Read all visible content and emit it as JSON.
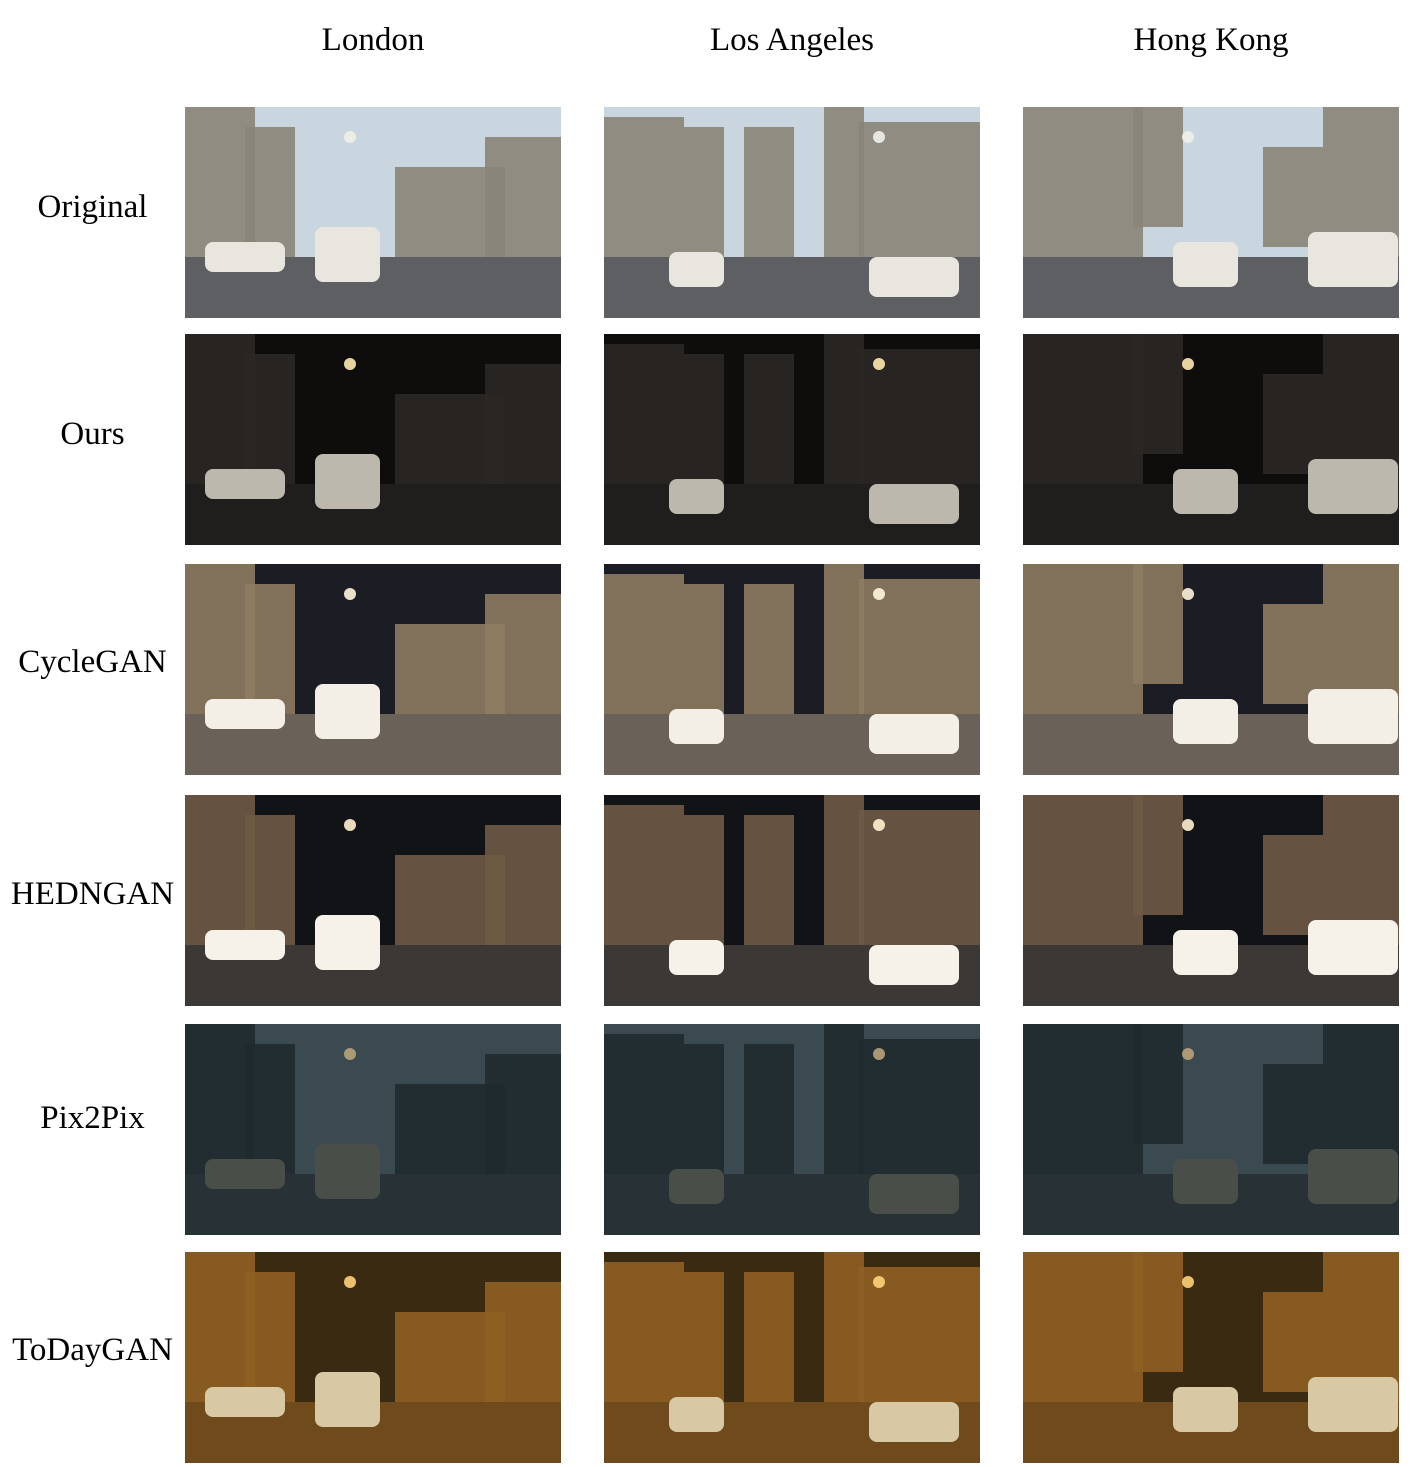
{
  "columns": [
    "London",
    "Los Angeles",
    "Hong Kong"
  ],
  "rows": [
    "Original",
    "Ours",
    "CycleGAN",
    "HEDNGAN",
    "Pix2Pix",
    "ToDayGAN"
  ],
  "palettes": {
    "Original": {
      "sky": "#c9d6e0",
      "building": "#8a8478",
      "road": "#5d5f63",
      "car": "#e8e6df",
      "light": "#f0f0ea"
    },
    "Ours": {
      "sky": "#0e0d0c",
      "building": "#2a2723",
      "road": "#1f1e1d",
      "car": "#bdb8ad",
      "light": "#ffe9b0"
    },
    "CycleGAN": {
      "sky": "#1b1c24",
      "building": "#8d7b62",
      "road": "#6a6258",
      "car": "#f4efe6",
      "light": "#fff6dc"
    },
    "HEDNGAN": {
      "sky": "#121316",
      "building": "#6f5a46",
      "road": "#3b3836",
      "car": "#f6f2ea",
      "light": "#fff2cf"
    },
    "Pix2Pix": {
      "sky": "#3a4a50",
      "building": "#1f2a2d",
      "road": "#283236",
      "car": "#4a4e48",
      "light": "#b9a27a"
    },
    "ToDayGAN": {
      "sky": "#3a2a12",
      "building": "#8f5f22",
      "road": "#6e4a1c",
      "car": "#d9c8a4",
      "light": "#ffd27a"
    }
  }
}
